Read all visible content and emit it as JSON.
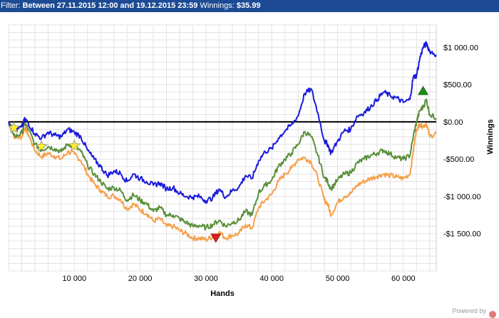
{
  "filter": {
    "prefix": "Filter: ",
    "range": "Between 27.11.2015 12:00 and 19.12.2015 23:59",
    "winnings_label": "Winnings: ",
    "winnings_value": "$35.99"
  },
  "footer": {
    "powered": "Powered by"
  },
  "chart_data": {
    "type": "line",
    "title": "",
    "xlabel": "Hands",
    "ylabel": "Winnings",
    "xlim": [
      0,
      65000
    ],
    "ylim": [
      -2000,
      1300
    ],
    "x_ticks": [
      10000,
      20000,
      30000,
      40000,
      50000,
      60000
    ],
    "x_tick_labels": [
      "10 000",
      "20 000",
      "30 000",
      "40 000",
      "50 000",
      "60 000"
    ],
    "y_ticks": [
      1000,
      500,
      0,
      -500,
      -1000,
      -1500
    ],
    "y_tick_labels": [
      "$1 000.00",
      "$500.00",
      "$0.00",
      "-$500.00",
      "-$1 000.00",
      "-$1 500.00"
    ],
    "grid": true,
    "zero_line": true,
    "series": [
      {
        "color": "#1a1adc",
        "x": [
          0,
          1000,
          2000,
          2500,
          3000,
          4000,
          5000,
          6000,
          7000,
          8000,
          9000,
          10000,
          11000,
          12000,
          13000,
          14000,
          15000,
          16000,
          17000,
          18000,
          19000,
          20000,
          21000,
          22000,
          23000,
          24000,
          25000,
          26000,
          27000,
          28000,
          29000,
          30000,
          31000,
          32000,
          33000,
          34000,
          35000,
          36000,
          37000,
          38000,
          39000,
          40000,
          41000,
          42000,
          43000,
          44000,
          45000,
          46000,
          47000,
          48000,
          48500,
          49000,
          50000,
          51000,
          52000,
          53000,
          54000,
          55000,
          56000,
          57000,
          58000,
          59000,
          60000,
          61000,
          61500,
          62000,
          62500,
          63000,
          63500,
          64000,
          65000
        ],
        "y": [
          0,
          -120,
          -70,
          40,
          -20,
          -160,
          -220,
          -140,
          -180,
          -200,
          -100,
          -140,
          -200,
          -380,
          -500,
          -600,
          -720,
          -660,
          -690,
          -800,
          -700,
          -760,
          -800,
          -850,
          -820,
          -900,
          -880,
          -960,
          -1000,
          -1010,
          -1000,
          -1060,
          -1020,
          -900,
          -1010,
          -920,
          -880,
          -720,
          -760,
          -520,
          -400,
          -360,
          -220,
          -120,
          -40,
          80,
          380,
          440,
          120,
          -260,
          -300,
          -420,
          -260,
          -120,
          -100,
          80,
          120,
          200,
          300,
          400,
          350,
          320,
          260,
          300,
          600,
          620,
          850,
          1000,
          1050,
          950,
          900
        ]
      },
      {
        "color": "#5a8f3a",
        "x": [
          0,
          1000,
          2000,
          2500,
          3000,
          4000,
          5000,
          6000,
          7000,
          8000,
          9000,
          10000,
          11000,
          12000,
          13000,
          14000,
          15000,
          16000,
          17000,
          18000,
          19000,
          20000,
          21000,
          22000,
          23000,
          24000,
          25000,
          26000,
          27000,
          28000,
          29000,
          30000,
          31000,
          32000,
          33000,
          34000,
          35000,
          36000,
          37000,
          38000,
          39000,
          40000,
          41000,
          42000,
          43000,
          44000,
          45000,
          46000,
          47000,
          48000,
          48500,
          49000,
          50000,
          51000,
          52000,
          53000,
          54000,
          55000,
          56000,
          57000,
          58000,
          59000,
          60000,
          61000,
          61500,
          62000,
          62500,
          63000,
          63500,
          64000,
          65000
        ],
        "y": [
          0,
          -200,
          -150,
          -20,
          -100,
          -300,
          -380,
          -330,
          -360,
          -400,
          -300,
          -320,
          -400,
          -580,
          -700,
          -800,
          -900,
          -880,
          -920,
          -1050,
          -980,
          -1050,
          -1100,
          -1200,
          -1150,
          -1250,
          -1250,
          -1300,
          -1350,
          -1400,
          -1390,
          -1420,
          -1380,
          -1320,
          -1400,
          -1350,
          -1320,
          -1200,
          -1250,
          -950,
          -850,
          -780,
          -600,
          -500,
          -420,
          -300,
          -130,
          -200,
          -450,
          -750,
          -800,
          -900,
          -780,
          -700,
          -680,
          -550,
          -500,
          -450,
          -420,
          -380,
          -430,
          -480,
          -500,
          -450,
          -200,
          0,
          150,
          200,
          300,
          100,
          50
        ]
      },
      {
        "color": "#f5a04a",
        "x": [
          0,
          1000,
          2000,
          2500,
          3000,
          4000,
          5000,
          6000,
          7000,
          8000,
          9000,
          10000,
          11000,
          12000,
          13000,
          14000,
          15000,
          16000,
          17000,
          18000,
          19000,
          20000,
          21000,
          22000,
          23000,
          24000,
          25000,
          26000,
          27000,
          28000,
          29000,
          30000,
          31000,
          32000,
          33000,
          34000,
          35000,
          36000,
          37000,
          38000,
          39000,
          40000,
          41000,
          42000,
          43000,
          44000,
          45000,
          46000,
          47000,
          48000,
          48500,
          49000,
          50000,
          51000,
          52000,
          53000,
          54000,
          55000,
          56000,
          57000,
          58000,
          59000,
          60000,
          61000,
          61500,
          62000,
          62500,
          63000,
          63500,
          64000,
          65000
        ],
        "y": [
          0,
          -220,
          -200,
          -80,
          -170,
          -380,
          -470,
          -420,
          -460,
          -500,
          -400,
          -430,
          -520,
          -700,
          -830,
          -920,
          -1000,
          -990,
          -1040,
          -1170,
          -1100,
          -1180,
          -1230,
          -1330,
          -1300,
          -1400,
          -1400,
          -1460,
          -1500,
          -1560,
          -1560,
          -1580,
          -1540,
          -1480,
          -1560,
          -1520,
          -1500,
          -1380,
          -1430,
          -1150,
          -1050,
          -970,
          -800,
          -700,
          -620,
          -500,
          -480,
          -540,
          -750,
          -1050,
          -1100,
          -1250,
          -1080,
          -1000,
          -960,
          -850,
          -800,
          -760,
          -730,
          -700,
          -720,
          -740,
          -760,
          -700,
          -400,
          -100,
          -30,
          -60,
          -20,
          -200,
          -150
        ]
      }
    ],
    "markers": [
      {
        "symbol": "star",
        "x": 800,
        "y": -80,
        "color": "#ffef2a"
      },
      {
        "symbol": "star",
        "x": 5000,
        "y": -330,
        "color": "#ffef2a"
      },
      {
        "symbol": "star",
        "x": 10000,
        "y": -320,
        "color": "#ffef2a"
      },
      {
        "symbol": "triangle-down",
        "x": 31500,
        "y": -1560,
        "color": "#dd1f1f"
      },
      {
        "symbol": "triangle-up",
        "x": 63000,
        "y": 420,
        "color": "#1a8c1a"
      }
    ]
  }
}
